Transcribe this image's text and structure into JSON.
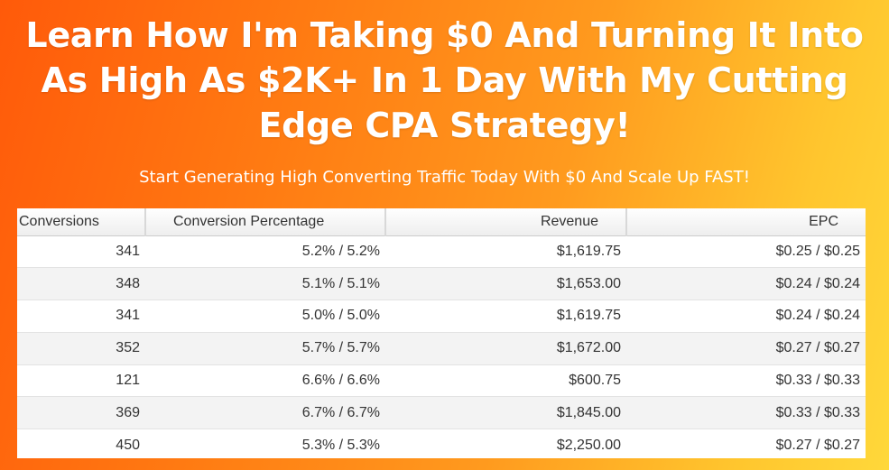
{
  "headline": "Learn How I'm Taking $0 And Turning It Into As High As $2K+ In 1 Day With My Cutting Edge CPA Strategy!",
  "subheadline": "Start Generating High Converting Traffic Today With $0 And Scale Up FAST!",
  "table": {
    "headers": [
      "Conversions",
      "Conversion Percentage",
      "Revenue",
      "EPC"
    ],
    "rows": [
      [
        "341",
        "5.2% / 5.2%",
        "$1,619.75",
        "$0.25 / $0.25"
      ],
      [
        "348",
        "5.1% / 5.1%",
        "$1,653.00",
        "$0.24 / $0.24"
      ],
      [
        "341",
        "5.0% / 5.0%",
        "$1,619.75",
        "$0.24 / $0.24"
      ],
      [
        "352",
        "5.7% / 5.7%",
        "$1,672.00",
        "$0.27 / $0.27"
      ],
      [
        "121",
        "6.6% / 6.6%",
        "$600.75",
        "$0.33 / $0.33"
      ],
      [
        "369",
        "6.7% / 6.7%",
        "$1,845.00",
        "$0.33 / $0.33"
      ],
      [
        "450",
        "5.3% / 5.3%",
        "$2,250.00",
        "$0.27 / $0.27"
      ]
    ]
  }
}
